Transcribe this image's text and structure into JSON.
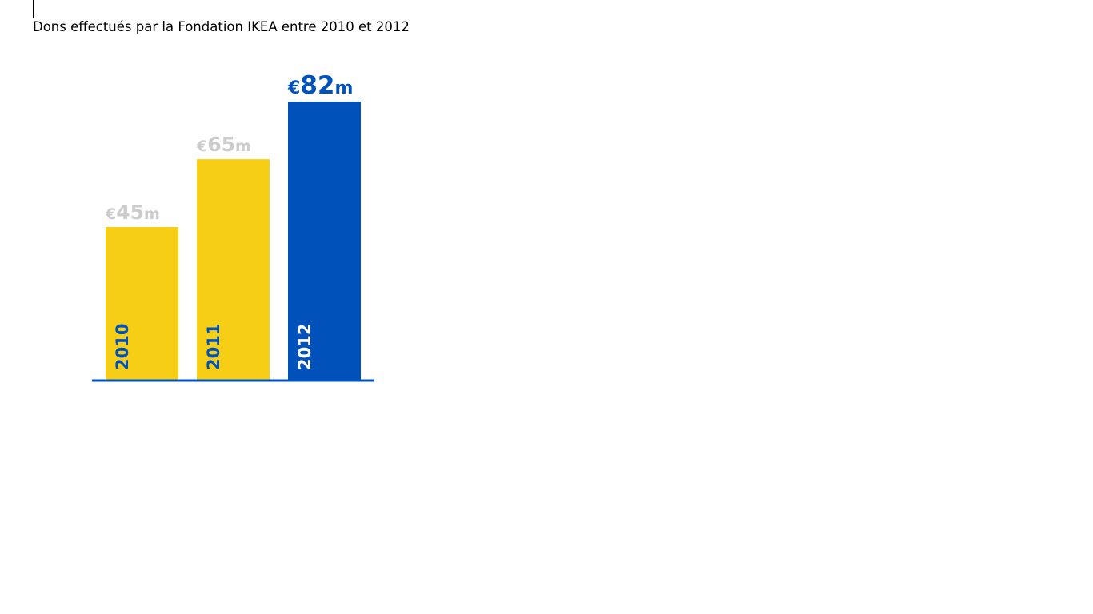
{
  "page": {
    "title": "Dons effectués par la Fondation IKEA entre 2010 et 2012"
  },
  "colors": {
    "yellow": "#F6CE16",
    "blue": "#0051BA",
    "muted_label": "#CCCCCC",
    "axis": "#0051BA"
  },
  "chart_data": {
    "type": "bar",
    "title": "Dons effectués par la Fondation IKEA entre 2010 et 2012",
    "categories": [
      "2010",
      "2011",
      "2012"
    ],
    "values": [
      45,
      65,
      82
    ],
    "value_labels": [
      {
        "currency": "€",
        "amount": "45",
        "unit": "m"
      },
      {
        "currency": "€",
        "amount": "65",
        "unit": "m"
      },
      {
        "currency": "€",
        "amount": "82",
        "unit": "m"
      }
    ],
    "bar_colors": [
      "#F6CE16",
      "#F6CE16",
      "#0051BA"
    ],
    "year_label_colors": [
      "#0051BA",
      "#0051BA",
      "#FFFFFF"
    ],
    "value_label_colors": [
      "#CCCCCC",
      "#CCCCCC",
      "#0051BA"
    ],
    "xlabel": "",
    "ylabel": "",
    "ylim": [
      0,
      82
    ],
    "grid": false,
    "legend": "none"
  }
}
